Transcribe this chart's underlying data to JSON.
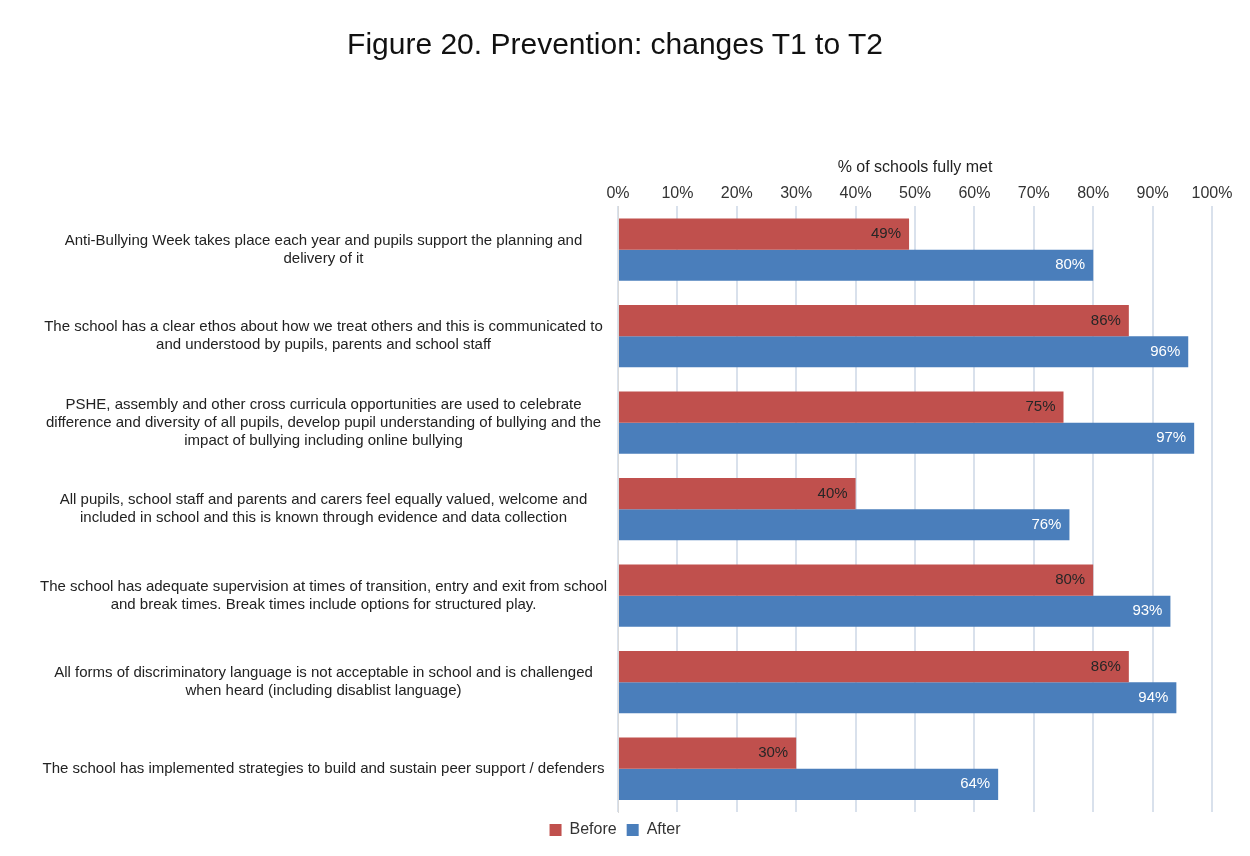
{
  "chart_data": {
    "type": "bar",
    "orientation": "horizontal",
    "title": "Figure 20. Prevention: changes T1 to T2",
    "xlabel": "% of schools fully met",
    "categories": [
      "Anti-Bullying Week takes place each year and pupils support the planning and delivery of it",
      "The school has a clear ethos about how we treat others and this is communicated to and understood by pupils, parents and school staff",
      "PSHE, assembly and other cross curricula opportunities are used to celebrate difference and diversity of all pupils, develop pupil understanding of bullying and the impact of bullying including online bullying",
      "All pupils, school staff and parents and carers feel equally valued, welcome and included in school and this is known through evidence and data collection",
      "The school has adequate supervision at times of transition, entry and exit from school and break times. Break times include options for structured play.",
      "All forms of discriminatory language is not acceptable in school and is challenged when heard (including disablist language)",
      "The school has implemented strategies to build and sustain peer support / defenders"
    ],
    "series": [
      {
        "name": "Before",
        "color": "#c0504d",
        "values": [
          49,
          86,
          75,
          40,
          80,
          86,
          30
        ],
        "value_labels": [
          "49%",
          "86%",
          "75%",
          "40%",
          "80%",
          "86%",
          "30%"
        ]
      },
      {
        "name": "After",
        "color": "#4a7ebb",
        "values": [
          80,
          96,
          97,
          76,
          93,
          94,
          64
        ],
        "value_labels": [
          "80%",
          "96%",
          "97%",
          "76%",
          "93%",
          "94%",
          "64%"
        ]
      }
    ],
    "xlim": [
      0,
      100
    ],
    "xticks": [
      {
        "value": 0,
        "label": "0%"
      },
      {
        "value": 10,
        "label": "10%"
      },
      {
        "value": 20,
        "label": "20%"
      },
      {
        "value": 30,
        "label": "30%"
      },
      {
        "value": 40,
        "label": "40%"
      },
      {
        "value": 50,
        "label": "50%"
      },
      {
        "value": 60,
        "label": "60%"
      },
      {
        "value": 70,
        "label": "70%"
      },
      {
        "value": 80,
        "label": "80%"
      },
      {
        "value": 90,
        "label": "90%"
      },
      {
        "value": 100,
        "label": "100%"
      }
    ],
    "grid": "x",
    "legend": "bottom"
  }
}
